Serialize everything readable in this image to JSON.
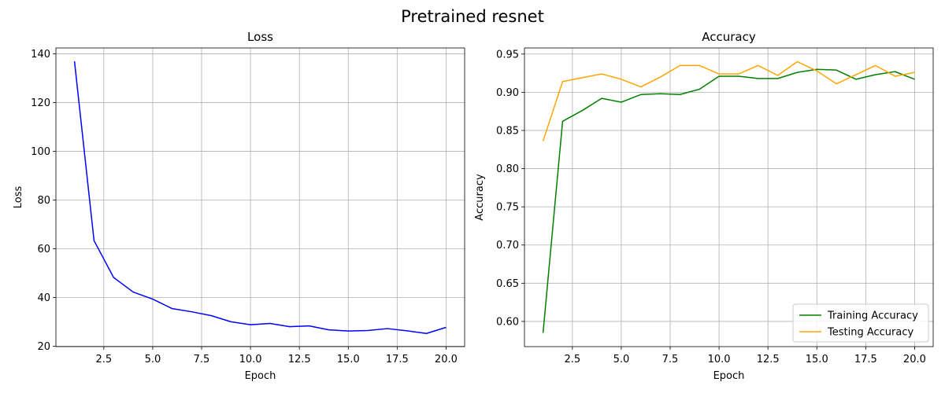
{
  "figure": {
    "suptitle": "Pretrained resnet"
  },
  "chart_data": [
    {
      "type": "line",
      "title": "Loss",
      "xlabel": "Epoch",
      "ylabel": "Loss",
      "x": [
        1,
        2,
        3,
        4,
        5,
        6,
        7,
        8,
        9,
        10,
        11,
        12,
        13,
        14,
        15,
        16,
        17,
        18,
        19,
        20
      ],
      "xlim": [
        0.05,
        20.95
      ],
      "ylim": [
        19.8,
        142.4
      ],
      "xticks": [
        2.5,
        5.0,
        7.5,
        10.0,
        12.5,
        15.0,
        17.5,
        20.0
      ],
      "xtick_labels": [
        "2.5",
        "5.0",
        "7.5",
        "10.0",
        "12.5",
        "15.0",
        "17.5",
        "20.0"
      ],
      "yticks": [
        20,
        40,
        60,
        80,
        100,
        120,
        140
      ],
      "ytick_labels": [
        "20",
        "40",
        "60",
        "80",
        "100",
        "120",
        "140"
      ],
      "grid": true,
      "series": [
        {
          "color": "#0000ff",
          "values": [
            136.9,
            63.3,
            48.2,
            42.2,
            39.3,
            35.4,
            34.1,
            32.5,
            30.0,
            28.8,
            29.3,
            28.0,
            28.3,
            26.7,
            26.2,
            26.4,
            27.2,
            26.3,
            25.2,
            27.7
          ]
        }
      ]
    },
    {
      "type": "line",
      "title": "Accuracy",
      "xlabel": "Epoch",
      "ylabel": "Accuracy",
      "x": [
        1,
        2,
        3,
        4,
        5,
        6,
        7,
        8,
        9,
        10,
        11,
        12,
        13,
        14,
        15,
        16,
        17,
        18,
        19,
        20
      ],
      "xlim": [
        0.05,
        20.95
      ],
      "ylim": [
        0.567,
        0.958
      ],
      "xticks": [
        2.5,
        5.0,
        7.5,
        10.0,
        12.5,
        15.0,
        17.5,
        20.0
      ],
      "xtick_labels": [
        "2.5",
        "5.0",
        "7.5",
        "10.0",
        "12.5",
        "15.0",
        "17.5",
        "20.0"
      ],
      "yticks": [
        0.6,
        0.65,
        0.7,
        0.75,
        0.8,
        0.85,
        0.9,
        0.95
      ],
      "ytick_labels": [
        "0.60",
        "0.65",
        "0.70",
        "0.75",
        "0.80",
        "0.85",
        "0.90",
        "0.95"
      ],
      "grid": true,
      "legend": "lower-right",
      "series": [
        {
          "name": "Training Accuracy",
          "color": "#008000",
          "values": [
            0.585,
            0.862,
            0.876,
            0.892,
            0.887,
            0.897,
            0.898,
            0.897,
            0.904,
            0.921,
            0.921,
            0.918,
            0.918,
            0.926,
            0.93,
            0.929,
            0.917,
            0.923,
            0.927,
            0.917
          ]
        },
        {
          "name": "Testing Accuracy",
          "color": "#ffa500",
          "values": [
            0.836,
            0.914,
            0.919,
            0.924,
            0.917,
            0.907,
            0.92,
            0.935,
            0.935,
            0.924,
            0.924,
            0.935,
            0.922,
            0.94,
            0.928,
            0.911,
            0.923,
            0.935,
            0.921,
            0.926
          ]
        }
      ]
    }
  ]
}
